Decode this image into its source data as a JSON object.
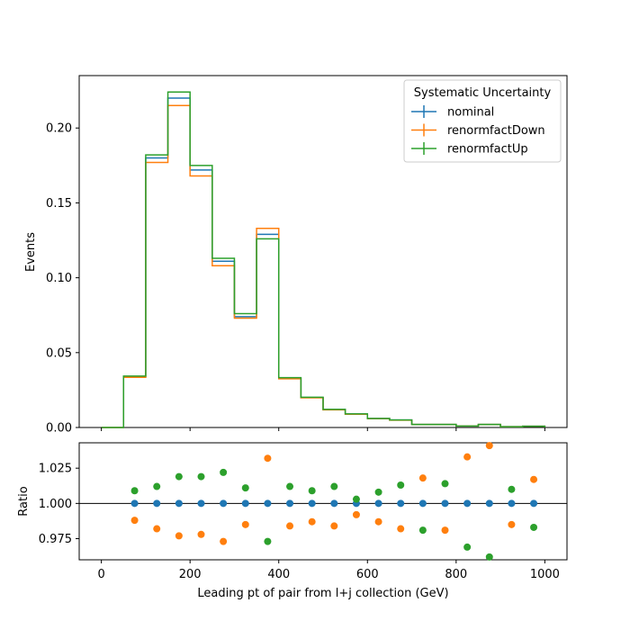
{
  "chart_data": [
    {
      "type": "line",
      "drawstyle": "step",
      "ylabel": "Events",
      "xlim": [
        -50,
        1050
      ],
      "ylim": [
        0,
        0.235
      ],
      "bin_edges": [
        0,
        50,
        100,
        150,
        200,
        250,
        300,
        350,
        400,
        450,
        500,
        550,
        600,
        650,
        700,
        750,
        800,
        850,
        900,
        950,
        1000
      ],
      "xticks": [
        0,
        200,
        400,
        600,
        800,
        1000
      ],
      "yticks": [
        0.0,
        0.05,
        0.1,
        0.15,
        0.2
      ],
      "ytick_labels": [
        "0.00",
        "0.05",
        "0.10",
        "0.15",
        "0.20"
      ],
      "legend": {
        "title": "Systematic Uncertainty",
        "position": "upper right"
      },
      "series": [
        {
          "name": "nominal",
          "color": "#1f77b4",
          "values": [
            0.0,
            0.034,
            0.18,
            0.22,
            0.172,
            0.111,
            0.074,
            0.129,
            0.033,
            0.02,
            0.012,
            0.009,
            0.006,
            0.005,
            0.002,
            0.002,
            0.001,
            0.002,
            0.0005,
            0.0008
          ]
        },
        {
          "name": "renormfactDown",
          "color": "#ff7f0e",
          "values": [
            0.0,
            0.0335,
            0.177,
            0.215,
            0.168,
            0.108,
            0.073,
            0.133,
            0.0325,
            0.0198,
            0.0118,
            0.0089,
            0.0059,
            0.0049,
            0.002,
            0.002,
            0.001,
            0.002,
            0.0005,
            0.0008
          ]
        },
        {
          "name": "renormfactUp",
          "color": "#2ca02c",
          "values": [
            0.0,
            0.0343,
            0.182,
            0.224,
            0.175,
            0.113,
            0.076,
            0.126,
            0.0333,
            0.0202,
            0.0121,
            0.0091,
            0.006,
            0.005,
            0.002,
            0.002,
            0.001,
            0.002,
            0.0005,
            0.0008
          ]
        }
      ]
    },
    {
      "type": "scatter",
      "xlabel": "Leading pt of pair from l+j collection (GeV)",
      "ylabel": "Ratio",
      "xlim": [
        -50,
        1050
      ],
      "ylim": [
        0.96,
        1.043
      ],
      "reference_line": 1.0,
      "xticks": [
        0,
        200,
        400,
        600,
        800,
        1000
      ],
      "xtick_labels": [
        "0",
        "200",
        "400",
        "600",
        "800",
        "1000"
      ],
      "yticks": [
        0.975,
        1.0,
        1.025
      ],
      "ytick_labels": [
        "0.975",
        "1.000",
        "1.025"
      ],
      "x": [
        75,
        125,
        175,
        225,
        275,
        325,
        375,
        425,
        475,
        525,
        575,
        625,
        675,
        725,
        775,
        825,
        875,
        925,
        975
      ],
      "series": [
        {
          "name": "nominal",
          "color": "#1f77b4",
          "values": [
            1.0,
            1.0,
            1.0,
            1.0,
            1.0,
            1.0,
            1.0,
            1.0,
            1.0,
            1.0,
            1.0,
            1.0,
            1.0,
            1.0,
            1.0,
            1.0,
            1.0,
            1.0,
            1.0
          ]
        },
        {
          "name": "renormfactDown",
          "color": "#ff7f0e",
          "values": [
            0.988,
            0.982,
            0.977,
            0.978,
            0.973,
            0.985,
            1.032,
            0.984,
            0.987,
            0.984,
            0.992,
            0.987,
            0.982,
            1.018,
            0.981,
            1.033,
            1.041,
            0.985,
            1.017
          ]
        },
        {
          "name": "renormfactUp",
          "color": "#2ca02c",
          "values": [
            1.009,
            1.012,
            1.019,
            1.019,
            1.022,
            1.011,
            0.973,
            1.012,
            1.009,
            1.012,
            1.003,
            1.008,
            1.013,
            0.981,
            1.014,
            0.969,
            0.962,
            1.01,
            0.983
          ]
        }
      ]
    }
  ]
}
